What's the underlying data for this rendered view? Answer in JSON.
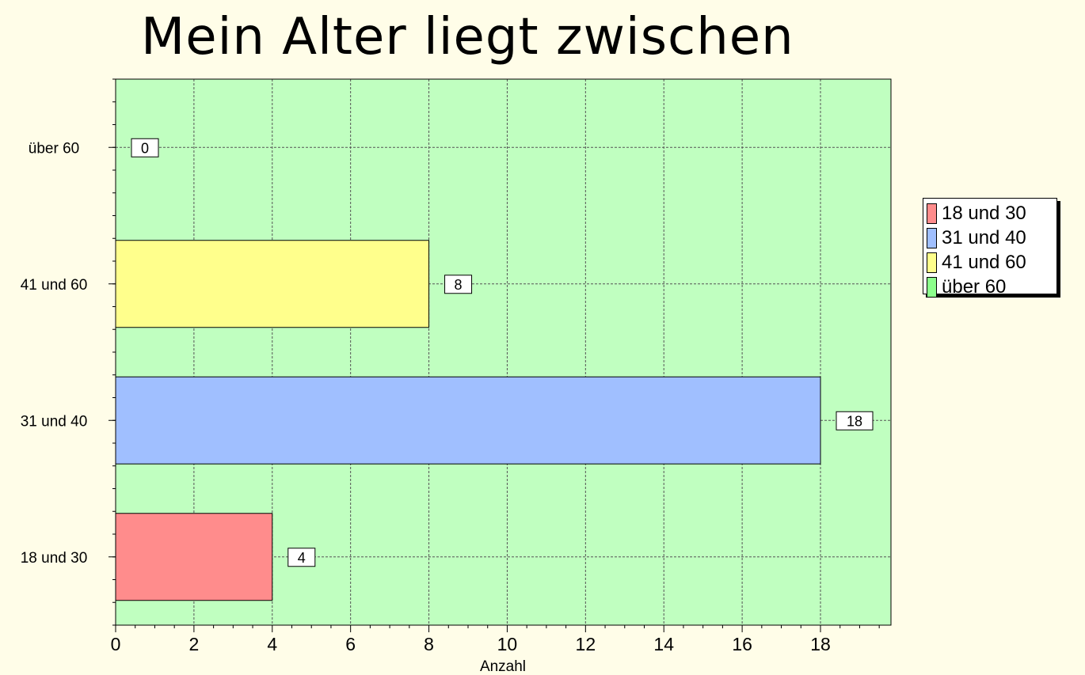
{
  "chart_data": {
    "type": "bar",
    "orientation": "horizontal",
    "title": "Mein Alter liegt zwischen",
    "xlabel": "Anzahl",
    "ylabel": "",
    "xlim": [
      0,
      19.8
    ],
    "x_ticks": [
      0,
      2,
      4,
      6,
      8,
      10,
      12,
      14,
      16,
      18
    ],
    "grid": true,
    "legend_position": "right",
    "categories": [
      "18 und 30",
      "31 und 40",
      "41 und 60",
      "über 60"
    ],
    "values": [
      4,
      18,
      8,
      0
    ],
    "colors": [
      "#ff8c8c",
      "#a0bfff",
      "#ffff8c",
      "#8cff8c"
    ],
    "plot_background": "#c0ffc0",
    "page_background": "#fffde8",
    "legend": [
      "18 und 30",
      "31 und 40",
      "41 und 60",
      "über 60"
    ]
  }
}
